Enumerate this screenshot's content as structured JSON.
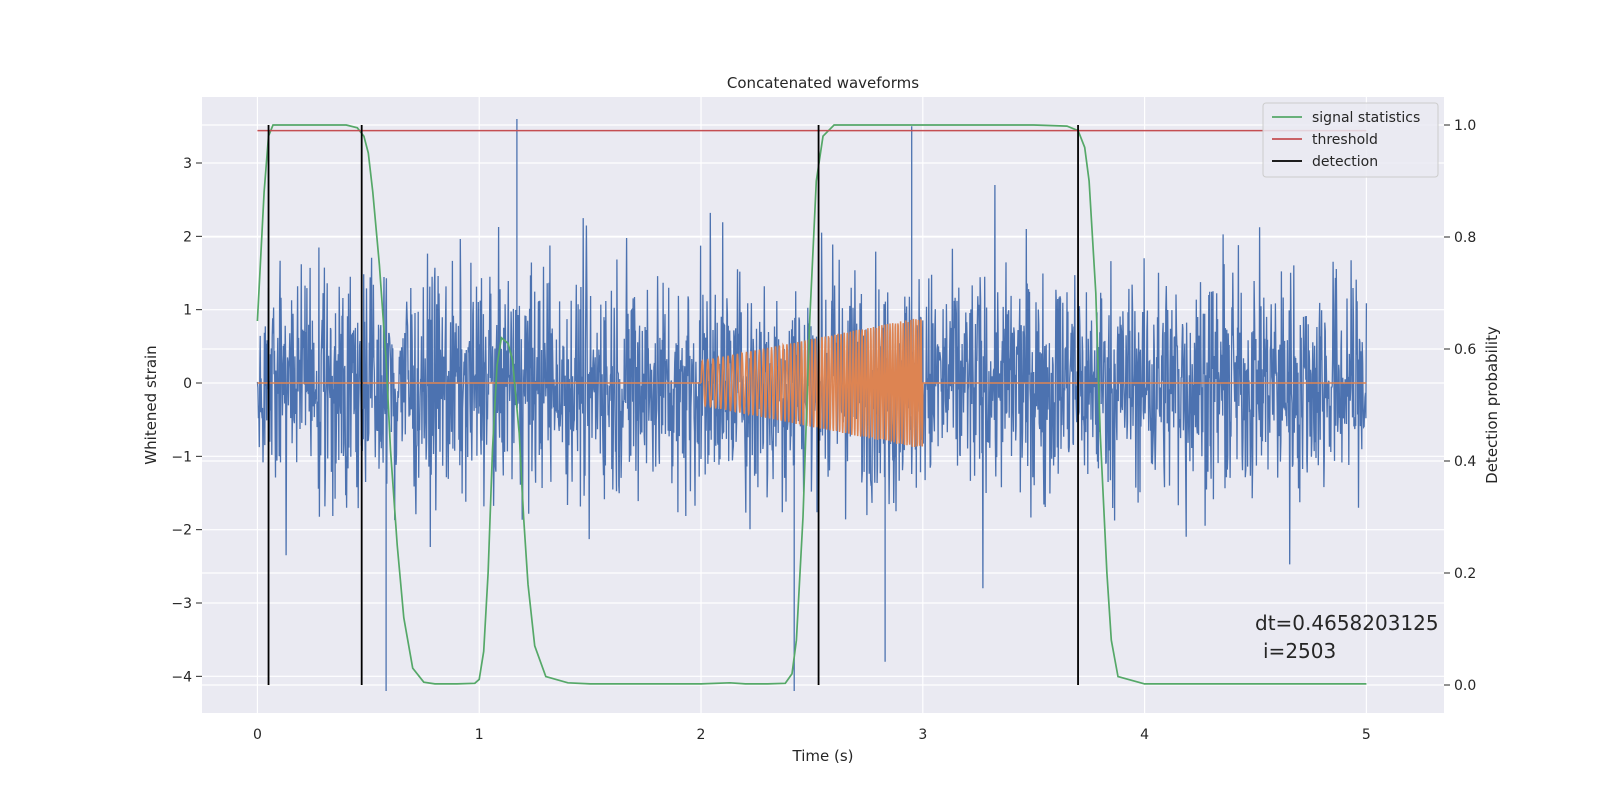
{
  "chart_data": {
    "type": "line",
    "title": "Concatenated waveforms",
    "xlabel": "Time (s)",
    "ylabel_left": "Whitened strain",
    "ylabel_right": "Detection probability",
    "xlim": [
      -0.25,
      5.35
    ],
    "ylim_left": [
      -4.5,
      3.9
    ],
    "ylim_right": [
      -0.05,
      1.05
    ],
    "x_ticks": [
      0,
      1,
      2,
      3,
      4,
      5
    ],
    "y_left_ticks": [
      -4,
      -3,
      -2,
      -1,
      0,
      1,
      2,
      3
    ],
    "y_right_ticks": [
      0.0,
      0.2,
      0.4,
      0.6,
      0.8,
      1.0
    ],
    "x_tick_labels": [
      "0",
      "1",
      "2",
      "3",
      "4",
      "5"
    ],
    "y_left_tick_labels": [
      "−4",
      "−3",
      "−2",
      "−1",
      "0",
      "1",
      "2",
      "3"
    ],
    "y_right_tick_labels": [
      "0.0",
      "0.2",
      "0.4",
      "0.6",
      "0.8",
      "1.0"
    ],
    "grid": true,
    "legend_position": "top-right",
    "annotation": {
      "line1": "dt=0.4658203125",
      "line2": "i=2503"
    },
    "noise_series": {
      "color": "#4c72b0",
      "x_range": [
        0,
        5
      ],
      "approx_envelope": [
        -2.0,
        2.5
      ],
      "notable_spikes": [
        [
          0.58,
          -4.2
        ],
        [
          1.17,
          3.6
        ],
        [
          2.42,
          -4.2
        ],
        [
          2.95,
          3.5
        ],
        [
          2.83,
          -3.8
        ]
      ]
    },
    "chirp_series": {
      "color": "#dd8452",
      "x_range": [
        0,
        5
      ],
      "active_range": [
        2.0,
        3.0
      ],
      "amplitude_start": 0.3,
      "amplitude_end": 0.9,
      "baseline": 0
    },
    "series": [
      {
        "name": "signal statistics",
        "color": "#55a868",
        "axis": "right",
        "x": [
          0.0,
          0.03,
          0.05,
          0.07,
          0.1,
          0.2,
          0.3,
          0.4,
          0.45,
          0.48,
          0.5,
          0.52,
          0.55,
          0.58,
          0.6,
          0.63,
          0.66,
          0.7,
          0.75,
          0.8,
          0.9,
          0.98,
          1.0,
          1.02,
          1.04,
          1.06,
          1.08,
          1.1,
          1.13,
          1.15,
          1.18,
          1.2,
          1.22,
          1.25,
          1.3,
          1.4,
          1.5,
          1.8,
          2.0,
          2.13,
          2.2,
          2.3,
          2.38,
          2.41,
          2.43,
          2.46,
          2.49,
          2.52,
          2.55,
          2.6,
          3.0,
          3.5,
          3.65,
          3.7,
          3.73,
          3.75,
          3.78,
          3.8,
          3.83,
          3.85,
          3.88,
          4.0,
          4.5,
          5.0
        ],
        "y": [
          0.65,
          0.88,
          0.98,
          1.0,
          1.0,
          1.0,
          1.0,
          1.0,
          0.995,
          0.98,
          0.95,
          0.88,
          0.75,
          0.58,
          0.42,
          0.25,
          0.12,
          0.03,
          0.005,
          0.002,
          0.002,
          0.003,
          0.01,
          0.06,
          0.2,
          0.42,
          0.57,
          0.62,
          0.61,
          0.58,
          0.45,
          0.3,
          0.18,
          0.07,
          0.015,
          0.004,
          0.002,
          0.002,
          0.002,
          0.004,
          0.002,
          0.002,
          0.003,
          0.02,
          0.08,
          0.3,
          0.65,
          0.9,
          0.98,
          1.0,
          1.0,
          1.0,
          0.998,
          0.99,
          0.96,
          0.9,
          0.7,
          0.45,
          0.2,
          0.08,
          0.015,
          0.002,
          0.002,
          0.002
        ]
      },
      {
        "name": "threshold",
        "color": "#c44e52",
        "axis": "right",
        "x": [
          0,
          5
        ],
        "y": [
          0.99,
          0.99
        ]
      },
      {
        "name": "detection",
        "color": "#000000",
        "axis": "right",
        "x": [
          0.05,
          0.47,
          2.53,
          3.7
        ],
        "y_range": [
          0,
          1
        ]
      }
    ]
  }
}
